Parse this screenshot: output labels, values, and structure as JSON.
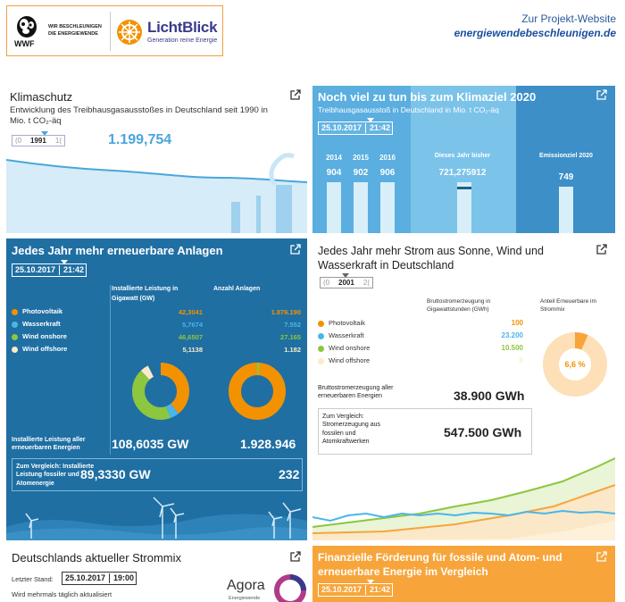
{
  "header": {
    "wwf_logo": "WWF",
    "wwf_tagline": "WIR BESCHLEUNIGEN DIE ENERGIEWENDE",
    "lichtblick_name": "LichtBlick",
    "lichtblick_sub": "Generation reine Energie",
    "project_label": "Zur Projekt-Website",
    "project_link": "energiewendebeschleunigen.de"
  },
  "colors": {
    "accent_blue": "#4aa6d9",
    "dark_blue": "#1f6fa3",
    "light_blue": "#5aaee0",
    "orange": "#f7a53b",
    "green": "#8bc34a",
    "pv": "#f39200",
    "hydro": "#4ab6e8",
    "wind_onshore": "#8dc63f",
    "wind_offshore": "#fdebc8"
  },
  "card_klimaschutz": {
    "title": "Klimaschutz",
    "subtitle": "Entwicklung des Treibhausgasausstoßes in Deutschland seit 1990 in Mio. t CO₂-äq",
    "year_low": "(0",
    "year_value": "1991",
    "year_high": "1(",
    "big_value": "1.199,754"
  },
  "card_ziel": {
    "title": "Noch viel zu tun bis zum Klimaziel 2020",
    "subtitle": "Treibhausgasausstoß in Deutschland in Mio. t CO₂-äq",
    "date": "25.10.2017",
    "time": "21:42",
    "years": [
      "2014",
      "2015",
      "2016"
    ],
    "year_values": [
      904,
      902,
      906
    ],
    "this_year_label": "Dieses Jahr bisher",
    "this_year_value": "721,275912",
    "target_label": "Emissionziel 2020",
    "target_value": "749"
  },
  "card_anlagen": {
    "title": "Jedes Jahr mehr erneuerbare Anlagen",
    "date": "25.10.2017",
    "time": "21:42",
    "col1_head": "Installierte Leistung in Gigawatt (GW)",
    "col2_head": "Anzahl Anlagen",
    "rows": [
      {
        "label": "Photovoltaik",
        "gw": "42,3041",
        "count": "1.876.190"
      },
      {
        "label": "Wasserkraft",
        "gw": "5,7674",
        "count": "7.552"
      },
      {
        "label": "Wind onshore",
        "gw": "46,6507",
        "count": "27.165"
      },
      {
        "label": "Wind offshore",
        "gw": "5,1138",
        "count": "1.182"
      }
    ],
    "total_label": "Installierte Leistung aller erneuerbaren Energien",
    "total_gw": "108,6035 GW",
    "total_count": "1.928.946",
    "compare_label": "Zum Vergleich: Installierte Leistung fossiler und Atomenergie",
    "compare_gw": "89,3330 GW",
    "compare_count": "232"
  },
  "card_strom": {
    "title": "Jedes Jahr mehr Strom aus Sonne, Wind und Wasserkraft in Deutschland",
    "year_low": "(0",
    "year_value": "2001",
    "year_high": "2(",
    "col1_head": "Bruttostromerzeugung in Gigawattstunden (GWh)",
    "col2_head": "Anteil Erneuerbare im Strommix",
    "rows": [
      {
        "label": "Photovoltaik",
        "value": "100"
      },
      {
        "label": "Wasserkraft",
        "value": "23.200"
      },
      {
        "label": "Wind onshore",
        "value": "10.500"
      },
      {
        "label": "Wind offshore",
        "value": "0"
      }
    ],
    "share": "6,6 %",
    "share_fraction": 0.066,
    "total_label": "Bruttostromerzeugung aller erneuerbaren Energien",
    "total_value": "38.900 GWh",
    "compare_label": "Zum Vergleich: Stromerzeugung aus fossilen und Atomkraftwerken",
    "compare_value": "547.500 GWh"
  },
  "card_strommix": {
    "title": "Deutschlands aktueller Strommix",
    "stand_label": "Letzter Stand:",
    "date": "25.10.2017",
    "time": "19:00",
    "update_note": "Wird mehrmals täglich aktualisiert",
    "agora": "Agora",
    "agora_sub": "Energiewende"
  },
  "card_foerderung": {
    "title": "Finanzielle Förderung für fossile und Atom- und erneuerbare Energie im Vergleich",
    "date": "25.10.2017",
    "time": "21:42"
  }
}
